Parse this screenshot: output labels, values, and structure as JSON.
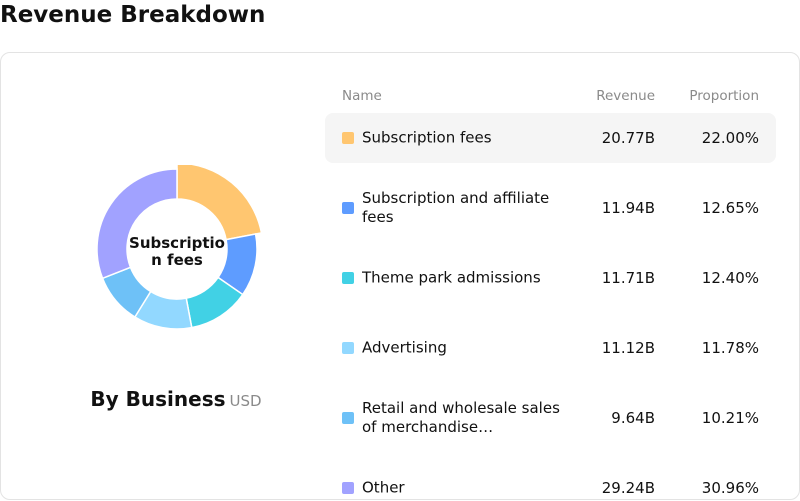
{
  "page": {
    "title": "Revenue Breakdown"
  },
  "donut": {
    "center_label": "Subscription fees"
  },
  "caption": {
    "main": "By Business",
    "unit": "USD"
  },
  "table": {
    "headers": {
      "name": "Name",
      "revenue": "Revenue",
      "proportion": "Proportion"
    }
  },
  "chart_data": {
    "type": "pie",
    "variant": "donut",
    "title": "By Business",
    "unit": "USD",
    "categories": [
      "Subscription fees",
      "Subscription and affiliate fees",
      "Theme park admissions",
      "Advertising",
      "Retail and wholesale sales of merchandise…",
      "Other"
    ],
    "revenue_labels": [
      "20.77B",
      "11.94B",
      "11.71B",
      "11.12B",
      "9.64B",
      "29.24B"
    ],
    "values": [
      20.77,
      11.94,
      11.71,
      11.12,
      9.64,
      29.24
    ],
    "proportions": [
      "22.00%",
      "12.65%",
      "12.40%",
      "11.78%",
      "10.21%",
      "30.96%"
    ],
    "colors": [
      "#ffc670",
      "#5e9cff",
      "#41d1e5",
      "#92d8ff",
      "#6ec1f7",
      "#a1a2ff"
    ],
    "highlighted_index": 0
  }
}
